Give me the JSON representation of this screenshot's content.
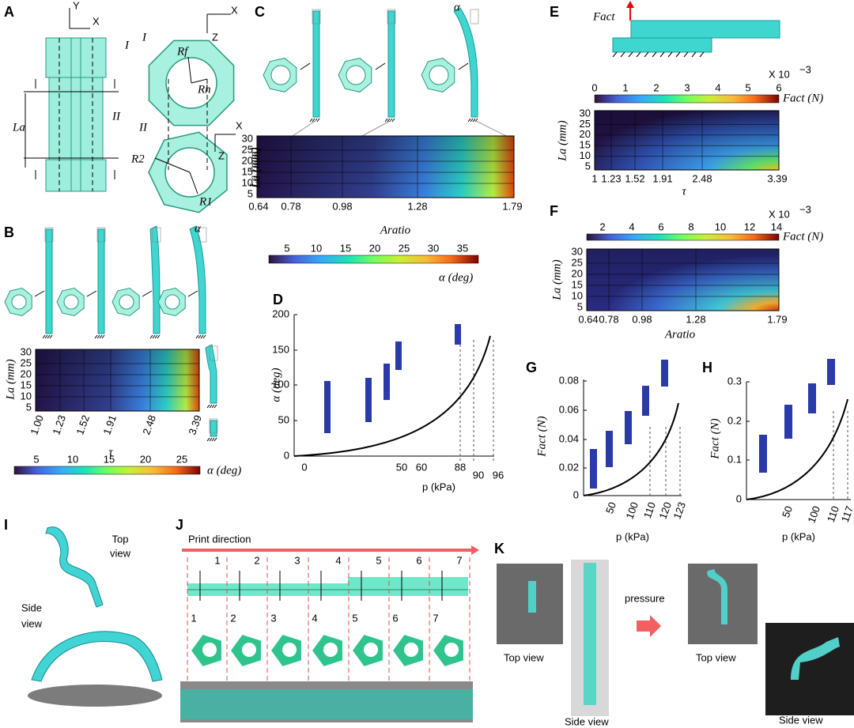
{
  "A": {
    "label": "A",
    "axis_y": "Y",
    "axis_x": "X",
    "zone1": "I",
    "zone2": "II",
    "length": "La",
    "sec1": "I",
    "sec2": "II",
    "sec1_x": "X",
    "sec1_z": "Z",
    "sec2_x": "X",
    "sec2_z": "Z",
    "rf": "Rf",
    "rh": "Rh",
    "r2": "R2",
    "r1": "R1"
  },
  "B": {
    "label": "B",
    "alpha": "α",
    "ylabel": "La (mm)",
    "yticks": [
      "30",
      "25",
      "20",
      "15",
      "10",
      "5"
    ],
    "xticks": [
      "1.00",
      "1.23",
      "1.52",
      "1.91",
      "2.48",
      "3.39"
    ],
    "xlabel": "τ",
    "colorbar_ticks": [
      "5",
      "10",
      "15",
      "20",
      "25"
    ],
    "colorbar_label": "α (deg)"
  },
  "C": {
    "label": "C",
    "alpha": "α",
    "ylabel": "La (mm)",
    "yticks": [
      "30",
      "25",
      "20",
      "15",
      "10",
      "5"
    ],
    "xticks": [
      "0.64",
      "0.78",
      "0.98",
      "1.28",
      "1.79"
    ],
    "xlabel": "Aratio",
    "colorbar_ticks": [
      "5",
      "10",
      "15",
      "20",
      "25",
      "30",
      "35"
    ],
    "colorbar_label": "α (deg)"
  },
  "D": {
    "label": "D",
    "ylabel": "α (deg)",
    "xlabel": "p (kPa)",
    "yticks": [
      "0",
      "50",
      "100",
      "150",
      "200"
    ],
    "xticks": [
      "0",
      "50",
      "60",
      "88",
      "90",
      "96"
    ]
  },
  "E": {
    "label": "E",
    "force": "Fact",
    "scale_base": "X 10",
    "scale_exp": "−3",
    "colorbar_ticks": [
      "0",
      "1",
      "2",
      "3",
      "4",
      "5",
      "6"
    ],
    "colorbar_label": "Fact (N)",
    "ylabel": "La (mm)",
    "yticks": [
      "30",
      "25",
      "20",
      "15",
      "10",
      "5"
    ],
    "xticks": [
      "1",
      "1.23",
      "1.52",
      "1.91",
      "2.48",
      "3.39"
    ],
    "xlabel": "τ"
  },
  "F": {
    "label": "F",
    "scale_base": "X 10",
    "scale_exp": "−3",
    "colorbar_ticks": [
      "2",
      "4",
      "6",
      "8",
      "10",
      "12",
      "14"
    ],
    "colorbar_label": "Fact (N)",
    "ylabel": "La (mm)",
    "yticks": [
      "30",
      "25",
      "20",
      "15",
      "10",
      "5"
    ],
    "xticks": [
      "0.64",
      "0.78",
      "0.98",
      "1.28",
      "1.79"
    ],
    "xlabel": "Aratio"
  },
  "G": {
    "label": "G",
    "ylabel": "Fact (N)",
    "xlabel": "p (kPa)",
    "yticks": [
      "0",
      "0.02",
      "0.04",
      "0.06",
      "0.08"
    ],
    "xticks": [
      "50",
      "100",
      "110",
      "120",
      "123"
    ]
  },
  "H": {
    "label": "H",
    "ylabel": "Fact (N)",
    "xlabel": "p (kPa)",
    "yticks": [
      "0",
      "0.1",
      "0.2",
      "0.3"
    ],
    "xticks": [
      "50",
      "100",
      "110",
      "117"
    ]
  },
  "I": {
    "label": "I",
    "top_view": [
      "Top",
      "view"
    ],
    "side_view": [
      "Side",
      "view"
    ]
  },
  "J": {
    "label": "J",
    "title": "Print direction",
    "top_numbers": [
      "1",
      "2",
      "3",
      "4",
      "5",
      "6",
      "7"
    ],
    "bottom_numbers": [
      "1",
      "2",
      "3",
      "4",
      "5",
      "6",
      "7"
    ]
  },
  "K": {
    "label": "K",
    "top_view_1": "Top view",
    "side_view_1": "Side view",
    "action": "pressure",
    "top_view_2": "Top view",
    "side_view_2": "Side view"
  }
}
